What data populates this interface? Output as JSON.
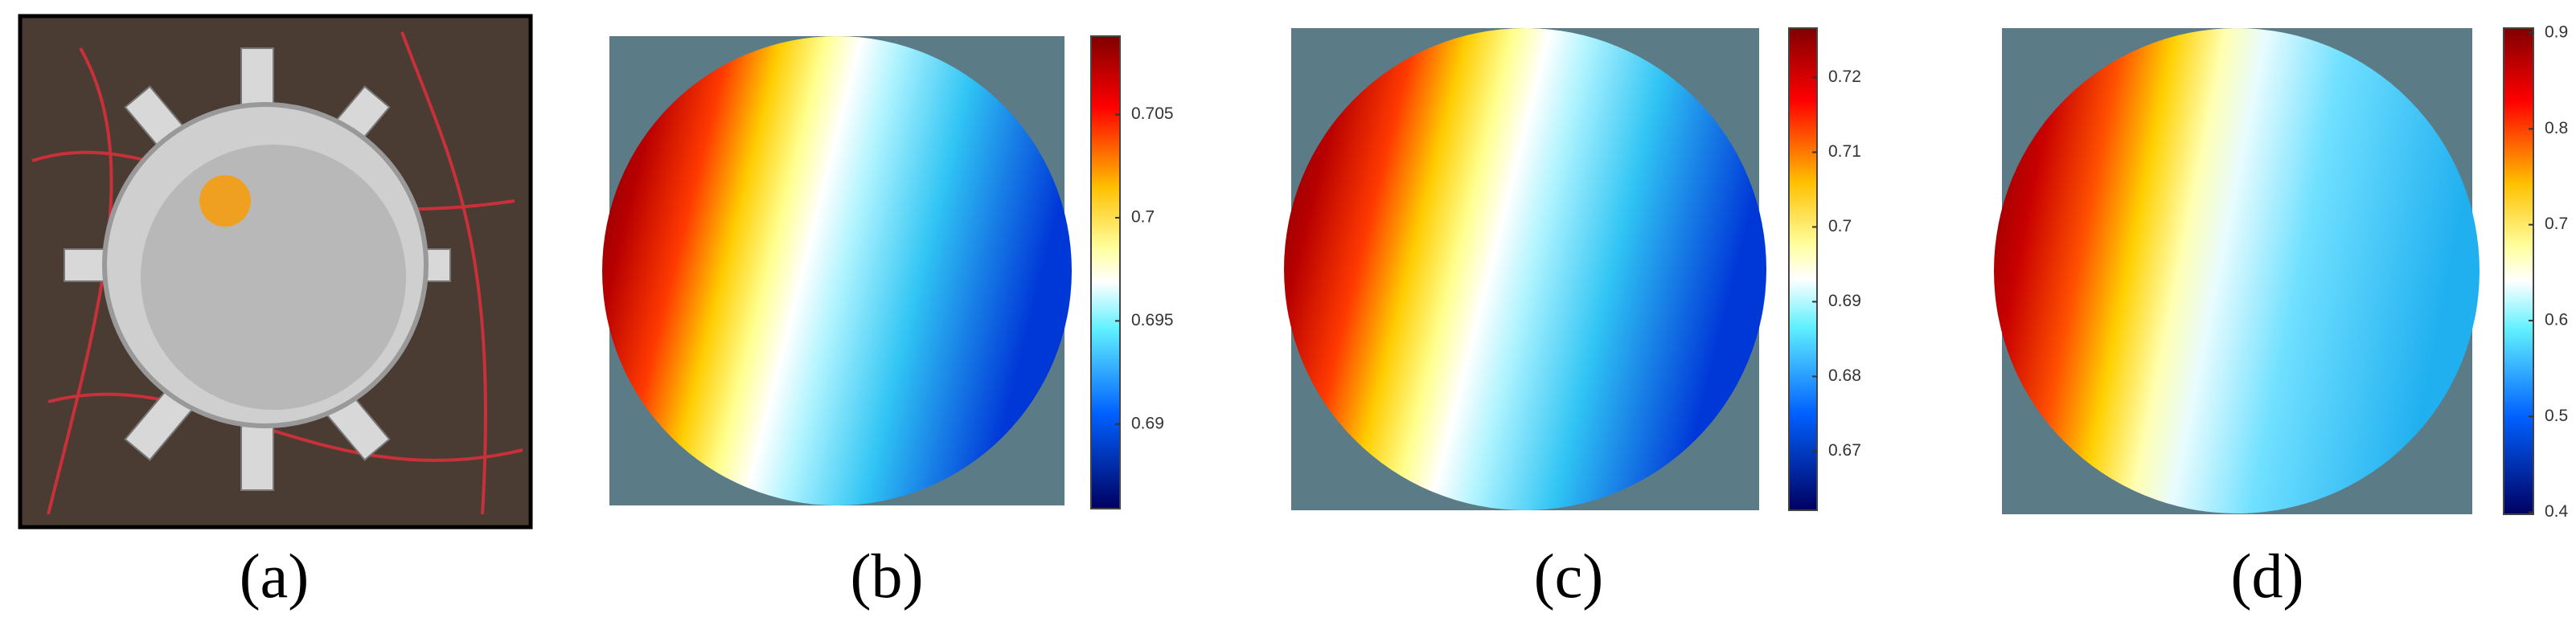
{
  "panels": [
    {
      "label": "(a)"
    },
    {
      "label": "(b)",
      "colorbar": {
        "lim": [
          0.6859,
          0.7088
        ],
        "ticks": [
          0.69,
          0.695,
          0.7,
          0.705
        ]
      }
    },
    {
      "label": "(c)",
      "colorbar": {
        "lim": [
          0.6621,
          0.7266
        ],
        "ticks": [
          0.67,
          0.68,
          0.69,
          0.7,
          0.71,
          0.72
        ]
      }
    },
    {
      "label": "(d)",
      "colorbar": {
        "lim": [
          0.398,
          0.905
        ],
        "ticks": [
          0.4,
          0.5,
          0.6,
          0.7,
          0.8,
          0.9
        ]
      }
    }
  ]
}
